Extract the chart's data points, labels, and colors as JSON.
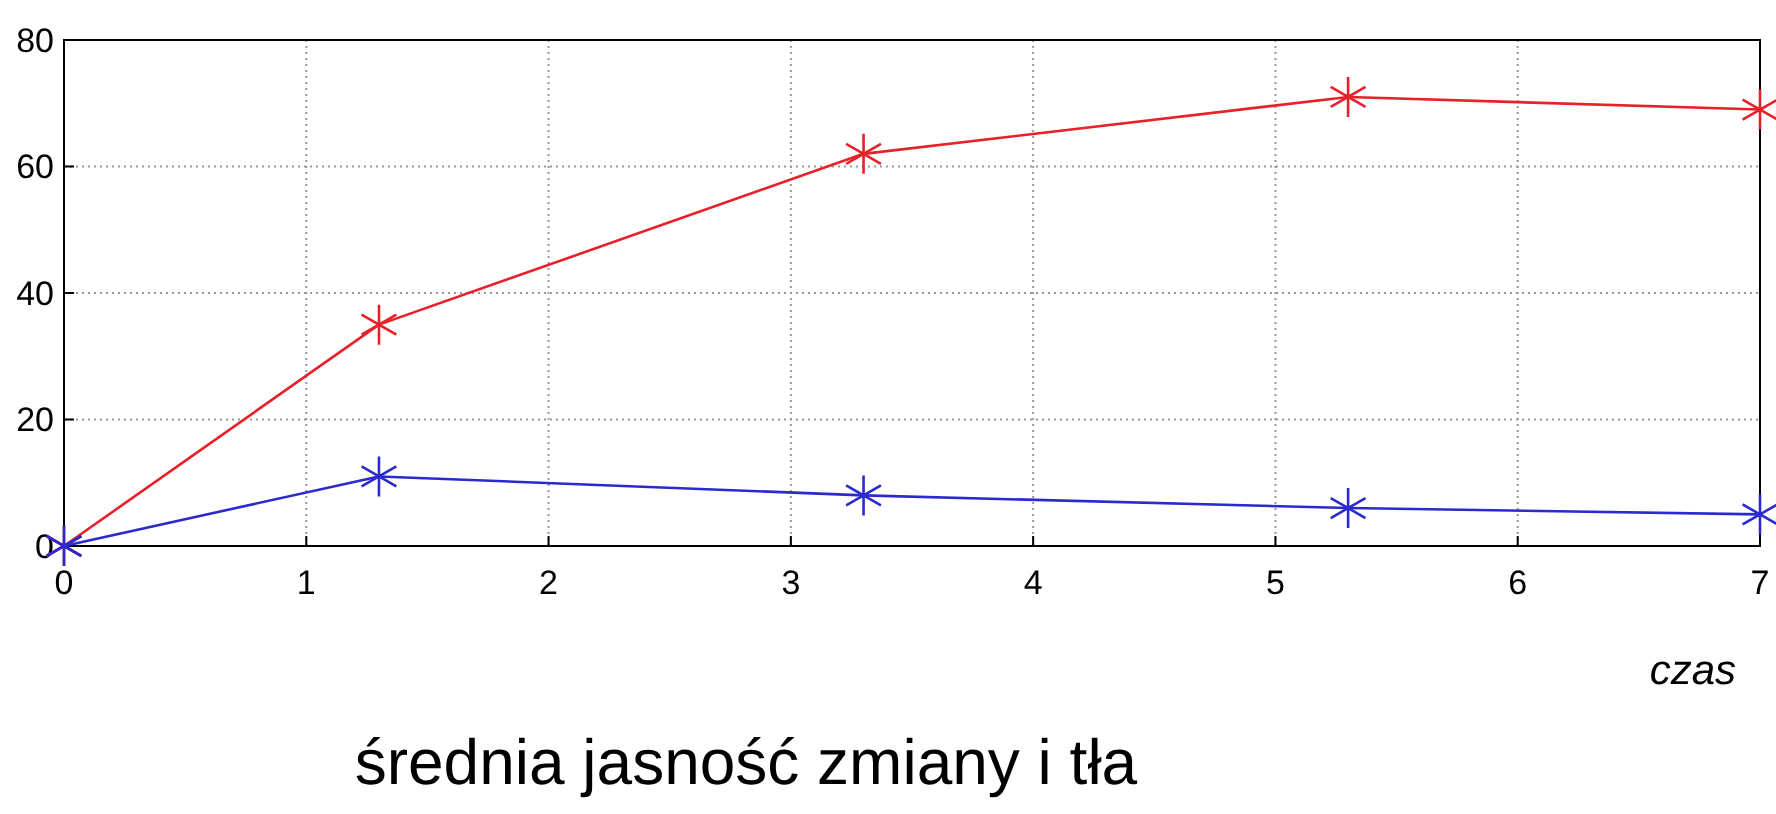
{
  "chart_data": {
    "type": "line",
    "title": "średnia jasność zmiany i tła",
    "xlabel": "czas",
    "x": [
      0,
      1.3,
      3.3,
      5.3,
      7
    ],
    "series": [
      {
        "color": "#e8202a",
        "values": [
          0,
          35,
          62,
          71,
          69
        ]
      },
      {
        "color": "#2a2acf",
        "values": [
          0,
          11,
          8,
          6,
          5
        ]
      }
    ],
    "xlim": [
      0,
      7
    ],
    "xticks": [
      0,
      1,
      2,
      3,
      4,
      5,
      6,
      7
    ],
    "ylim": [
      0,
      80
    ],
    "yticks": [
      0,
      20,
      40,
      60,
      80
    ],
    "grid": true,
    "marker": "cross",
    "line_style": "solid"
  }
}
